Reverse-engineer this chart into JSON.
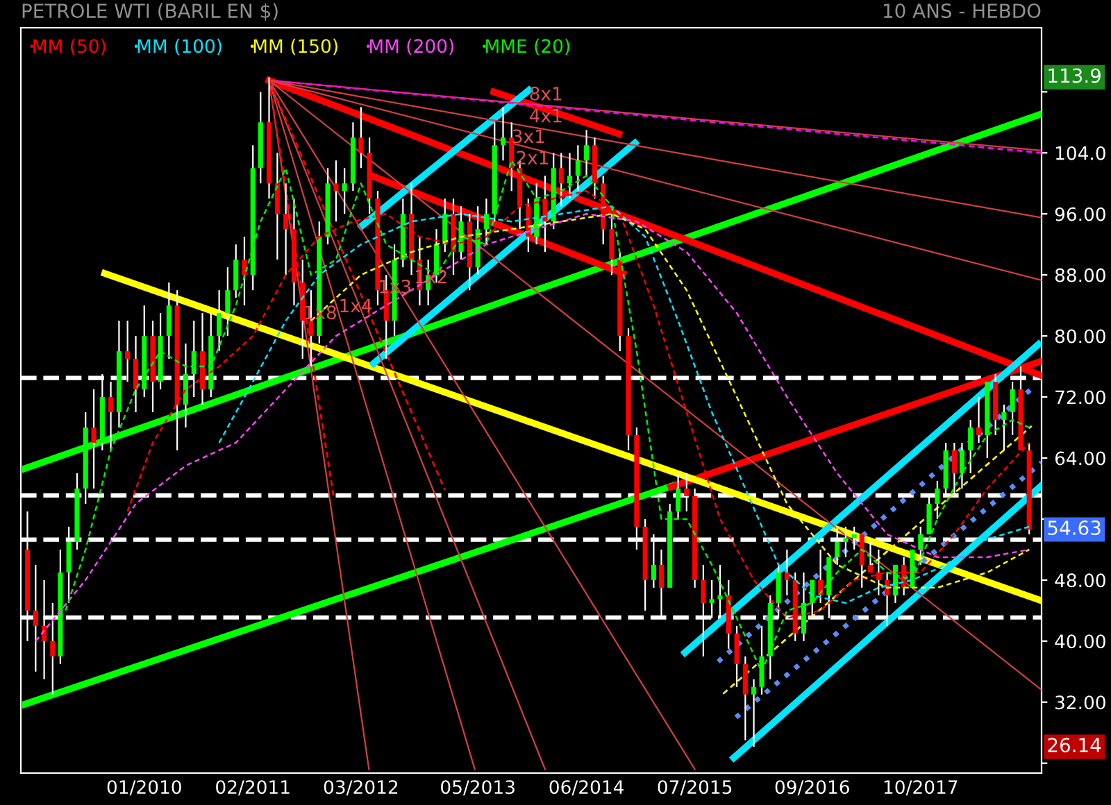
{
  "chart_data": {
    "type": "candlestick",
    "title": "PETROLE WTI (BARIL EN $)",
    "subtitle": "10 ANS - HEBDO",
    "x": [
      "2008-11",
      "2008-12",
      "2009-01",
      "2009-02",
      "2009-03",
      "2009-04",
      "2009-05",
      "2009-06",
      "2009-07",
      "2009-08",
      "2009-09",
      "2009-10",
      "2009-11",
      "2009-12",
      "2010-01",
      "2010-02",
      "2010-03",
      "2010-04",
      "2010-05",
      "2010-06",
      "2010-07",
      "2010-08",
      "2010-09",
      "2010-10",
      "2010-11",
      "2010-12",
      "2011-01",
      "2011-02",
      "2011-03",
      "2011-04",
      "2011-05",
      "2011-06",
      "2011-07",
      "2011-08",
      "2011-09",
      "2011-10",
      "2011-11",
      "2011-12",
      "2012-01",
      "2012-02",
      "2012-03",
      "2012-04",
      "2012-05",
      "2012-06",
      "2012-07",
      "2012-08",
      "2012-09",
      "2012-10",
      "2012-11",
      "2012-12",
      "2013-01",
      "2013-02",
      "2013-03",
      "2013-04",
      "2013-05",
      "2013-06",
      "2013-07",
      "2013-08",
      "2013-09",
      "2013-10",
      "2013-11",
      "2013-12",
      "2014-01",
      "2014-02",
      "2014-03",
      "2014-04",
      "2014-05",
      "2014-06",
      "2014-07",
      "2014-08",
      "2014-09",
      "2014-10",
      "2014-11",
      "2014-12",
      "2015-01",
      "2015-02",
      "2015-03",
      "2015-04",
      "2015-05",
      "2015-06",
      "2015-07",
      "2015-08",
      "2015-09",
      "2015-10",
      "2015-11",
      "2015-12",
      "2016-01",
      "2016-02",
      "2016-03",
      "2016-04",
      "2016-05",
      "2016-06",
      "2016-07",
      "2016-08",
      "2016-09",
      "2016-10",
      "2016-11",
      "2016-12",
      "2017-01",
      "2017-02",
      "2017-03",
      "2017-04",
      "2017-05",
      "2017-06",
      "2017-07",
      "2017-08",
      "2017-09",
      "2017-10",
      "2017-11",
      "2017-12",
      "2018-01",
      "2018-02",
      "2018-03",
      "2018-04",
      "2018-05",
      "2018-06",
      "2018-07",
      "2018-08",
      "2018-09",
      "2018-10",
      "2018-11"
    ],
    "ohlc": [
      [
        52,
        57,
        40,
        44
      ],
      [
        44,
        50,
        36,
        42
      ],
      [
        42,
        48,
        35,
        40
      ],
      [
        40,
        45,
        33,
        38
      ],
      [
        38,
        52,
        37,
        49
      ],
      [
        49,
        55,
        45,
        53
      ],
      [
        53,
        62,
        52,
        60
      ],
      [
        60,
        70,
        58,
        68
      ],
      [
        68,
        73,
        60,
        66
      ],
      [
        66,
        75,
        65,
        72
      ],
      [
        72,
        74,
        65,
        70
      ],
      [
        70,
        82,
        68,
        78
      ],
      [
        78,
        82,
        74,
        77
      ],
      [
        77,
        80,
        70,
        73
      ],
      [
        73,
        84,
        72,
        80
      ],
      [
        80,
        82,
        70,
        74
      ],
      [
        74,
        83,
        73,
        80
      ],
      [
        80,
        87,
        77,
        84
      ],
      [
        84,
        86,
        65,
        71
      ],
      [
        71,
        79,
        68,
        75
      ],
      [
        75,
        82,
        72,
        78
      ],
      [
        78,
        83,
        71,
        73
      ],
      [
        73,
        83,
        72,
        80
      ],
      [
        80,
        86,
        78,
        83
      ],
      [
        83,
        89,
        80,
        86
      ],
      [
        86,
        92,
        85,
        90
      ],
      [
        90,
        93,
        84,
        88
      ],
      [
        88,
        105,
        86,
        102
      ],
      [
        102,
        112,
        100,
        108
      ],
      [
        108,
        113.9,
        98,
        100
      ],
      [
        100,
        104,
        90,
        96
      ],
      [
        96,
        100,
        88,
        94
      ],
      [
        94,
        98,
        84,
        87
      ],
      [
        87,
        90,
        77,
        82
      ],
      [
        82,
        86,
        76,
        80
      ],
      [
        80,
        95,
        79,
        93
      ],
      [
        93,
        102,
        92,
        100
      ],
      [
        100,
        103,
        95,
        99
      ],
      [
        99,
        102,
        96,
        100
      ],
      [
        100,
        108,
        99,
        106
      ],
      [
        106,
        110,
        102,
        104
      ],
      [
        104,
        106,
        96,
        98
      ],
      [
        98,
        99,
        84,
        86
      ],
      [
        86,
        88,
        77,
        82
      ],
      [
        82,
        92,
        80,
        90
      ],
      [
        90,
        98,
        89,
        96
      ],
      [
        96,
        100,
        88,
        90
      ],
      [
        90,
        93,
        84,
        86
      ],
      [
        86,
        90,
        84,
        88
      ],
      [
        88,
        94,
        87,
        92
      ],
      [
        92,
        98,
        91,
        96
      ],
      [
        96,
        98,
        88,
        91
      ],
      [
        91,
        97,
        90,
        95
      ],
      [
        95,
        96,
        86,
        89
      ],
      [
        89,
        97,
        88,
        94
      ],
      [
        94,
        98,
        92,
        96
      ],
      [
        96,
        108,
        95,
        105
      ],
      [
        105,
        110,
        103,
        106
      ],
      [
        106,
        108,
        99,
        102
      ],
      [
        102,
        103,
        94,
        97
      ],
      [
        97,
        98,
        91,
        93
      ],
      [
        93,
        100,
        92,
        98
      ],
      [
        98,
        101,
        91,
        95
      ],
      [
        95,
        104,
        94,
        102
      ],
      [
        102,
        104,
        97,
        100
      ],
      [
        100,
        104,
        98,
        101
      ],
      [
        101,
        105,
        99,
        103
      ],
      [
        103,
        107,
        101,
        105
      ],
      [
        105,
        106,
        98,
        100
      ],
      [
        100,
        101,
        92,
        94
      ],
      [
        94,
        96,
        88,
        90
      ],
      [
        90,
        91,
        78,
        80
      ],
      [
        80,
        81,
        65,
        67
      ],
      [
        67,
        68,
        52,
        55
      ],
      [
        55,
        56,
        44,
        48
      ],
      [
        48,
        54,
        47,
        50
      ],
      [
        50,
        52,
        43,
        47
      ],
      [
        47,
        58,
        47,
        57
      ],
      [
        57,
        62,
        56,
        60
      ],
      [
        60,
        62,
        57,
        59
      ],
      [
        59,
        60,
        47,
        48
      ],
      [
        48,
        50,
        38,
        45
      ],
      [
        45,
        48,
        43,
        45.5
      ],
      [
        45.5,
        50,
        43,
        46
      ],
      [
        46,
        48,
        39,
        41
      ],
      [
        41,
        42,
        34,
        37
      ],
      [
        37,
        38,
        27,
        33
      ],
      [
        33,
        35,
        26.14,
        34
      ],
      [
        34,
        42,
        33,
        38
      ],
      [
        38,
        46,
        35,
        45
      ],
      [
        45,
        50,
        43,
        49
      ],
      [
        49,
        52,
        46,
        48
      ],
      [
        48,
        49,
        40,
        41
      ],
      [
        41,
        49,
        40,
        45
      ],
      [
        45,
        48,
        43,
        48
      ],
      [
        48,
        52,
        45,
        46
      ],
      [
        46,
        51,
        43,
        51
      ],
      [
        51,
        55,
        50,
        53
      ],
      [
        53,
        55,
        51,
        53.5
      ],
      [
        53.5,
        55,
        52,
        54
      ],
      [
        54,
        54,
        47,
        50
      ],
      [
        50,
        53,
        49,
        49
      ],
      [
        49,
        52,
        46,
        48
      ],
      [
        48,
        49,
        42,
        46
      ],
      [
        46,
        50,
        45,
        50
      ],
      [
        50,
        51,
        46,
        47
      ],
      [
        47,
        52,
        47,
        52
      ],
      [
        52,
        55,
        50,
        54
      ],
      [
        54,
        59,
        54,
        58
      ],
      [
        58,
        61,
        56,
        60
      ],
      [
        60,
        66,
        59,
        65
      ],
      [
        65,
        66,
        59,
        62
      ],
      [
        62,
        66,
        60,
        65
      ],
      [
        65,
        69,
        62,
        68
      ],
      [
        68,
        72,
        66,
        67
      ],
      [
        67,
        74,
        64,
        74
      ],
      [
        74,
        75,
        67,
        69
      ],
      [
        69,
        71,
        65,
        70
      ],
      [
        70,
        74,
        67,
        73
      ],
      [
        73,
        76,
        65,
        65
      ],
      [
        65,
        66,
        54,
        54.63
      ]
    ],
    "series": [
      {
        "name": "MM (50)",
        "color": "#ff0000",
        "type": "line",
        "line_style": "dashed",
        "x": [
          "2009-11",
          "2010-02",
          "2010-06",
          "2010-10",
          "2011-02",
          "2011-06",
          "2011-10",
          "2012-02",
          "2012-06",
          "2012-10",
          "2013-02",
          "2013-06",
          "2013-10",
          "2014-02",
          "2014-06",
          "2014-10",
          "2015-02",
          "2015-06",
          "2015-10",
          "2016-02",
          "2016-06",
          "2016-10",
          "2017-02",
          "2017-06",
          "2017-10",
          "2018-02",
          "2018-06",
          "2018-11"
        ],
        "values": [
          57,
          66,
          73,
          76,
          80,
          88,
          93,
          95,
          96,
          93,
          92,
          93,
          97,
          98,
          99,
          96,
          84,
          70,
          56,
          48,
          43,
          44,
          48,
          49,
          49,
          54,
          60,
          66
        ]
      },
      {
        "name": "MM (100)",
        "color": "#00e5ff",
        "type": "line",
        "line_style": "dashed",
        "x": [
          "2010-10",
          "2011-02",
          "2011-06",
          "2011-10",
          "2012-03",
          "2012-09",
          "2013-03",
          "2013-09",
          "2014-03",
          "2014-09",
          "2015-01",
          "2015-05",
          "2015-09",
          "2016-01",
          "2016-05",
          "2016-09",
          "2017-01",
          "2017-05",
          "2017-09",
          "2018-01",
          "2018-05",
          "2018-11"
        ],
        "values": [
          66,
          74,
          82,
          88,
          92,
          95,
          96,
          95,
          96,
          97,
          93,
          82,
          70,
          60,
          50,
          46,
          45,
          47,
          48,
          50,
          53,
          55
        ]
      },
      {
        "name": "MM (150)",
        "color": "#ffff00",
        "type": "line",
        "line_style": "dashed",
        "x": [
          "2011-09",
          "2012-03",
          "2012-09",
          "2013-03",
          "2013-09",
          "2014-03",
          "2014-09",
          "2015-01",
          "2015-06",
          "2015-12",
          "2016-06",
          "2016-12",
          "2017-06",
          "2017-12",
          "2018-06",
          "2018-11"
        ],
        "values": [
          82,
          88,
          91,
          93,
          94,
          95,
          96,
          94,
          86,
          72,
          58,
          50,
          47,
          47,
          49,
          52
        ]
      },
      {
        "name": "MM (200)",
        "color": "#ff44ff",
        "type": "line",
        "line_style": "dashed",
        "x": [
          "2008-12",
          "2009-06",
          "2009-12",
          "2010-06",
          "2010-12",
          "2011-06",
          "2011-12",
          "2012-06",
          "2012-12",
          "2013-06",
          "2013-12",
          "2014-06",
          "2014-12",
          "2015-06",
          "2015-12",
          "2016-06",
          "2016-12",
          "2017-06",
          "2017-12",
          "2018-06",
          "2018-11"
        ],
        "values": [
          40,
          48,
          58,
          63,
          66,
          73,
          80,
          84,
          88,
          92,
          94,
          96,
          95,
          91,
          83,
          72,
          62,
          54,
          51,
          51,
          52
        ]
      },
      {
        "name": "MME (20)",
        "color": "#00ee00",
        "type": "line",
        "line_style": "dashed",
        "x": [
          "2009-03-20",
          "2009-06",
          "2009-09",
          "2009-12",
          "2010-03",
          "2010-06",
          "2010-09",
          "2010-12",
          "2011-03",
          "2011-06",
          "2011-09",
          "2011-12",
          "2012-03",
          "2012-06",
          "2012-09",
          "2012-12",
          "2013-03",
          "2013-06",
          "2013-09",
          "2013-12",
          "2014-03",
          "2014-06",
          "2014-09",
          "2014-12",
          "2015-03",
          "2015-06",
          "2015-09",
          "2015-12",
          "2016-03",
          "2016-06",
          "2016-09",
          "2016-12",
          "2017-03",
          "2017-06",
          "2017-09",
          "2017-12",
          "2018-03",
          "2018-06",
          "2018-09",
          "2018-11"
        ],
        "values": [
          44,
          52,
          65,
          73,
          78,
          76,
          76,
          84,
          95,
          102,
          88,
          90,
          100,
          92,
          90,
          88,
          93,
          92,
          103,
          98,
          99,
          101,
          97,
          78,
          56,
          56,
          50,
          43,
          36,
          44,
          45,
          49,
          52,
          49,
          48,
          56,
          62,
          67,
          69,
          68
        ]
      },
      {
        "color": "#00ff00",
        "type": "line",
        "x": [
          "2008-10-12",
          "2015-04-14"
        ],
        "values": [
          31.6,
          60.4
        ]
      },
      {
        "color": "#ff0000",
        "type": "line",
        "x": [
          "2015-04-05",
          "2018-12-16"
        ],
        "values": [
          60.2,
          76.7
        ]
      },
      {
        "color": "#00ff00",
        "type": "line",
        "x": [
          "2008-10-12",
          "2018-12-16"
        ],
        "values": [
          62.5,
          109.1
        ]
      },
      {
        "color": "#ffff00",
        "type": "line",
        "x": [
          "2009-08-10",
          "2018-12-16"
        ],
        "values": [
          88.2,
          45.3
        ]
      },
      {
        "color": "#ff0000",
        "type": "line",
        "x": [
          "2011-04-01",
          "2018-12-16"
        ],
        "values": [
          113.5,
          74.8
        ]
      },
      {
        "color": "#ff0000",
        "type": "line",
        "x": [
          "2013-06-28",
          "2014-09-27"
        ],
        "values": [
          112,
          106.5
        ]
      },
      {
        "color": "#ff0000",
        "type": "line",
        "x": [
          "2012-04-16",
          "2014-10-12"
        ],
        "values": [
          100.9,
          88.2
        ]
      },
      {
        "color": "#ff00ff",
        "type": "line",
        "line_style": "dashed",
        "x": [
          "2011-05-01",
          "2018-12-16"
        ],
        "values": [
          113.4,
          104.0
        ]
      },
      {
        "color": "#00e5ff",
        "type": "line",
        "x": [
          "2012-03-03",
          "2013-11-03"
        ],
        "values": [
          94.4,
          112.2
        ]
      },
      {
        "color": "#00e5ff",
        "type": "line",
        "x": [
          "2012-04-16",
          "2014-11-25"
        ],
        "values": [
          76.4,
          105.3
        ]
      },
      {
        "color": "#00e5ff",
        "type": "line",
        "x": [
          "2015-05-26",
          "2018-12-05"
        ],
        "values": [
          38.5,
          78.9
        ]
      },
      {
        "color": "#00e5ff",
        "type": "line",
        "x": [
          "2015-11-20",
          "2018-12-16"
        ],
        "values": [
          24.7,
          60.4
        ]
      },
      {
        "color": "#ffee00",
        "type": "line",
        "line_style": "dashed",
        "x": [
          "2015-10-12",
          "2018-11-10"
        ],
        "values": [
          33.1,
          68.2
        ]
      },
      {
        "color": "#5a8cff",
        "type": "line",
        "line_style": "dotted",
        "x": [
          "2015-09-24",
          "2018-11-10"
        ],
        "values": [
          37.3,
          73.1
        ]
      },
      {
        "color": "#5a8cff",
        "type": "line",
        "line_style": "dotted",
        "x": [
          "2015-11-28",
          "2018-12-16"
        ],
        "values": [
          30.0,
          63.4
        ]
      },
      {
        "color": "#d04040",
        "type": "line",
        "line_style": "solid",
        "x": [
          "2011-04-01",
          "2018-12-16"
        ],
        "values": [
          113.5,
          104.3
        ]
      },
      {
        "color": "#d04040",
        "type": "line",
        "line_style": "solid",
        "x": [
          "2011-04-01",
          "2018-12-16"
        ],
        "values": [
          113.5,
          95.5
        ]
      },
      {
        "color": "#d04040",
        "type": "line",
        "line_style": "solid",
        "x": [
          "2011-04-01",
          "2018-12-16"
        ],
        "values": [
          113.5,
          87.3
        ]
      },
      {
        "color": "#d04040",
        "type": "line",
        "line_style": "solid",
        "x": [
          "2011-04-01",
          "2018-12-16"
        ],
        "values": [
          113.5,
          33.6
        ]
      },
      {
        "color": "#d04040",
        "type": "line",
        "line_style": "solid",
        "x": [
          "2011-04-01",
          "2012-03-30"
        ],
        "values": [
          113.5,
          23.2
        ]
      },
      {
        "color": "#d04040",
        "type": "line",
        "line_style": "solid",
        "x": [
          "2011-04-01",
          "2013-04-20"
        ],
        "values": [
          113.5,
          23.2
        ]
      },
      {
        "color": "#d04040",
        "type": "line",
        "line_style": "solid",
        "x": [
          "2011-04-01",
          "2014-01-01"
        ],
        "values": [
          113.5,
          23.2
        ]
      },
      {
        "color": "#d04040",
        "type": "line",
        "line_style": "solid",
        "x": [
          "2011-04-01",
          "2015-07-01"
        ],
        "values": [
          113.5,
          23.2
        ]
      },
      {
        "color": "#ff0000",
        "type": "line",
        "line_style": "dashed",
        "x": [
          "2011-04-01",
          "2011-11-24"
        ],
        "values": [
          113.5,
          58.5
        ]
      },
      {
        "color": "#ff0000",
        "type": "line",
        "line_style": "dashed",
        "x": [
          "2011-04-01",
          "2013-01-01"
        ],
        "values": [
          113.5,
          59.8
        ]
      }
    ],
    "ref_lines": [
      {
        "axis": "y",
        "value": 74.5,
        "color": "#ffffff",
        "line_style": "dashed"
      },
      {
        "axis": "y",
        "value": 59.1,
        "color": "#ffffff",
        "line_style": "dashed"
      },
      {
        "axis": "y",
        "value": 53.3,
        "color": "#ffffff",
        "line_style": "dashed"
      },
      {
        "axis": "y",
        "value": 43.1,
        "color": "#ffffff",
        "line_style": "dashed"
      }
    ],
    "annotations": [
      {
        "text": "8x1",
        "x": "2013-11-03",
        "y": 110.9
      },
      {
        "text": "4x1",
        "x": "2013-11-03",
        "y": 108
      },
      {
        "text": "3x1",
        "x": "2013-09-01",
        "y": 105.3
      },
      {
        "text": "2x1",
        "x": "2013-09-15",
        "y": 102.5
      },
      {
        "text": "1x2",
        "x": "2012-09-10",
        "y": 86.9
      },
      {
        "text": "1x3",
        "x": "2012-05-01",
        "y": 85.6
      },
      {
        "text": "1x4",
        "x": "2011-12-10",
        "y": 83.1
      },
      {
        "text": "1x8",
        "x": "2011-08-03",
        "y": 82.2
      },
      {
        "text": "113.9",
        "y": 113.9
      },
      {
        "text": "54.63",
        "y": 54.63
      },
      {
        "text": "26.14",
        "y": 26.14
      }
    ],
    "legend": "top left",
    "xlim": [
      "2008-10-08",
      "2018-12-16"
    ],
    "ylim": [
      22.7,
      120.4
    ],
    "xticks": [
      {
        "value": "2010-01-01",
        "label": "01/2010"
      },
      {
        "value": "2011-02-01",
        "label": "02/2011"
      },
      {
        "value": "2012-03-01",
        "label": "03/2012"
      },
      {
        "value": "2013-05-01",
        "label": "05/2013"
      },
      {
        "value": "2014-06-01",
        "label": "06/2014"
      },
      {
        "value": "2015-07-01",
        "label": "07/2015"
      },
      {
        "value": "2016-09-01",
        "label": "09/2016"
      },
      {
        "value": "2017-10-01",
        "label": "10/2017"
      }
    ],
    "yticks": [
      {
        "value": 24,
        "label": null
      },
      {
        "value": 32,
        "label": "32.00"
      },
      {
        "value": 40,
        "label": "40.00"
      },
      {
        "value": 48,
        "label": "48.00"
      },
      {
        "value": 56,
        "label": null
      },
      {
        "value": 64,
        "label": "64.00"
      },
      {
        "value": 72,
        "label": "72.00"
      },
      {
        "value": 80,
        "label": "80.00"
      },
      {
        "value": 88,
        "label": "88.00"
      },
      {
        "value": 96,
        "label": "96.00"
      },
      {
        "value": 104,
        "label": "104.0"
      },
      {
        "value": 112,
        "label": null
      }
    ]
  }
}
